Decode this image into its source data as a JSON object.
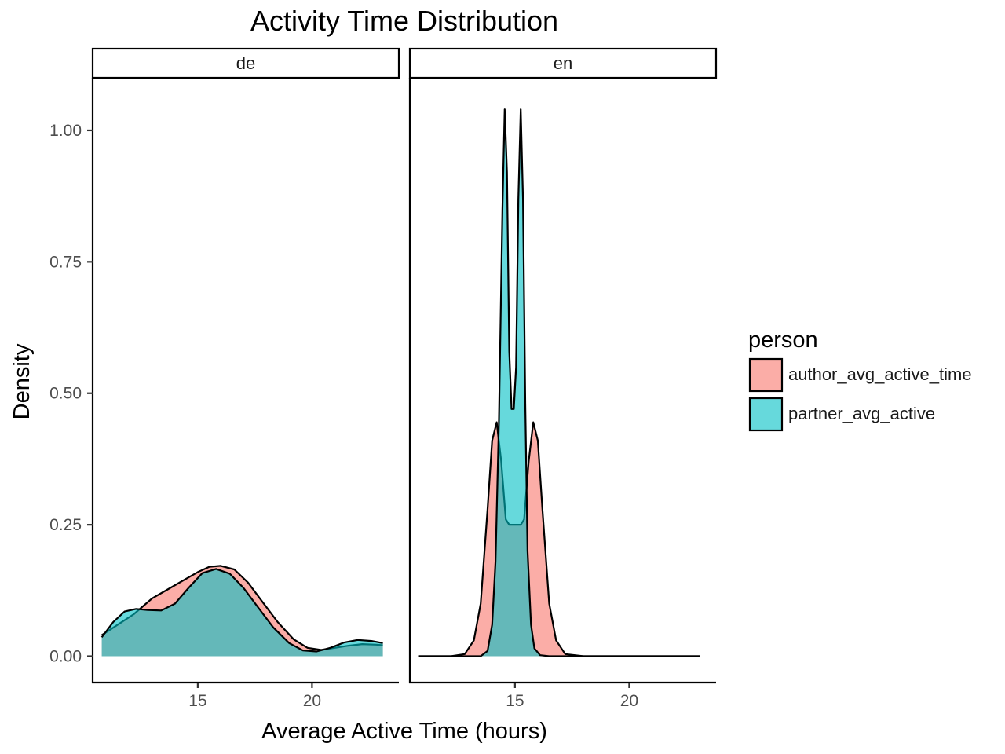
{
  "chart_data": {
    "type": "area",
    "title": "Activity Time Distribution",
    "xlabel": "Average Active Time (hours)",
    "ylabel": "Density",
    "xlim": [
      10.4,
      23.8
    ],
    "ylim": [
      -0.05,
      1.1
    ],
    "x_ticks": [
      {
        "value": 15,
        "label": "15"
      },
      {
        "value": 20,
        "label": "20"
      }
    ],
    "y_ticks": [
      {
        "value": 0,
        "label": "0.00"
      },
      {
        "value": 0.25,
        "label": "0.25"
      },
      {
        "value": 0.5,
        "label": "0.50"
      },
      {
        "value": 0.75,
        "label": "0.75"
      },
      {
        "value": 1.0,
        "label": "1.00"
      }
    ],
    "grid": false,
    "legend": {
      "title": "person",
      "position": "right",
      "entries": [
        {
          "label": "author_avg_active_time",
          "color": "#f8766d"
        },
        {
          "label": "partner_avg_active",
          "color": "#00bfc4"
        }
      ]
    },
    "fill_alpha": 0.6,
    "panels": [
      {
        "facet": "de",
        "series": [
          {
            "name": "author_avg_active_time",
            "x": [
              10.8,
              11.5,
              12.2,
              13.0,
              13.8,
              14.4,
              15.0,
              15.5,
              16.0,
              16.6,
              17.2,
              17.8,
              18.5,
              19.2,
              19.8,
              20.4,
              21.0,
              21.6,
              22.2,
              22.8,
              23.1
            ],
            "y": [
              0.04,
              0.06,
              0.08,
              0.11,
              0.13,
              0.145,
              0.16,
              0.17,
              0.172,
              0.165,
              0.14,
              0.105,
              0.065,
              0.032,
              0.016,
              0.012,
              0.016,
              0.02,
              0.023,
              0.022,
              0.021
            ]
          },
          {
            "name": "partner_avg_active",
            "x": [
              10.8,
              11.3,
              11.8,
              12.3,
              12.8,
              13.4,
              14.0,
              14.6,
              15.2,
              15.8,
              16.4,
              17.0,
              17.6,
              18.3,
              19.0,
              19.6,
              20.2,
              20.8,
              21.4,
              22.0,
              22.6,
              23.1
            ],
            "y": [
              0.036,
              0.065,
              0.085,
              0.09,
              0.088,
              0.087,
              0.1,
              0.13,
              0.158,
              0.166,
              0.157,
              0.13,
              0.095,
              0.055,
              0.025,
              0.011,
              0.009,
              0.016,
              0.026,
              0.031,
              0.029,
              0.025
            ]
          }
        ]
      },
      {
        "facet": "en",
        "series": [
          {
            "name": "author_avg_active_time",
            "x": [
              10.8,
              12.2,
              12.8,
              13.2,
              13.5,
              13.8,
              14.0,
              14.2,
              14.4,
              14.6,
              14.75,
              15.0,
              15.25,
              15.4,
              15.6,
              15.8,
              16.0,
              16.2,
              16.5,
              16.8,
              17.2,
              18.0,
              23.1
            ],
            "y": [
              0,
              0,
              0.004,
              0.03,
              0.1,
              0.28,
              0.41,
              0.445,
              0.37,
              0.26,
              0.25,
              0.25,
              0.25,
              0.26,
              0.37,
              0.445,
              0.41,
              0.28,
              0.1,
              0.03,
              0.004,
              0,
              0
            ]
          },
          {
            "name": "partner_avg_active",
            "x": [
              10.8,
              13.5,
              13.8,
              14.0,
              14.15,
              14.3,
              14.45,
              14.55,
              14.65,
              14.75,
              14.85,
              14.95,
              15.05,
              15.15,
              15.25,
              15.35,
              15.45,
              15.55,
              15.7,
              15.85,
              16.1,
              16.5,
              23.1
            ],
            "y": [
              0,
              0,
              0.01,
              0.06,
              0.18,
              0.45,
              0.85,
              1.04,
              0.92,
              0.58,
              0.47,
              0.47,
              0.55,
              0.87,
              1.04,
              0.87,
              0.48,
              0.2,
              0.06,
              0.015,
              0.002,
              0,
              0
            ]
          }
        ]
      }
    ]
  }
}
